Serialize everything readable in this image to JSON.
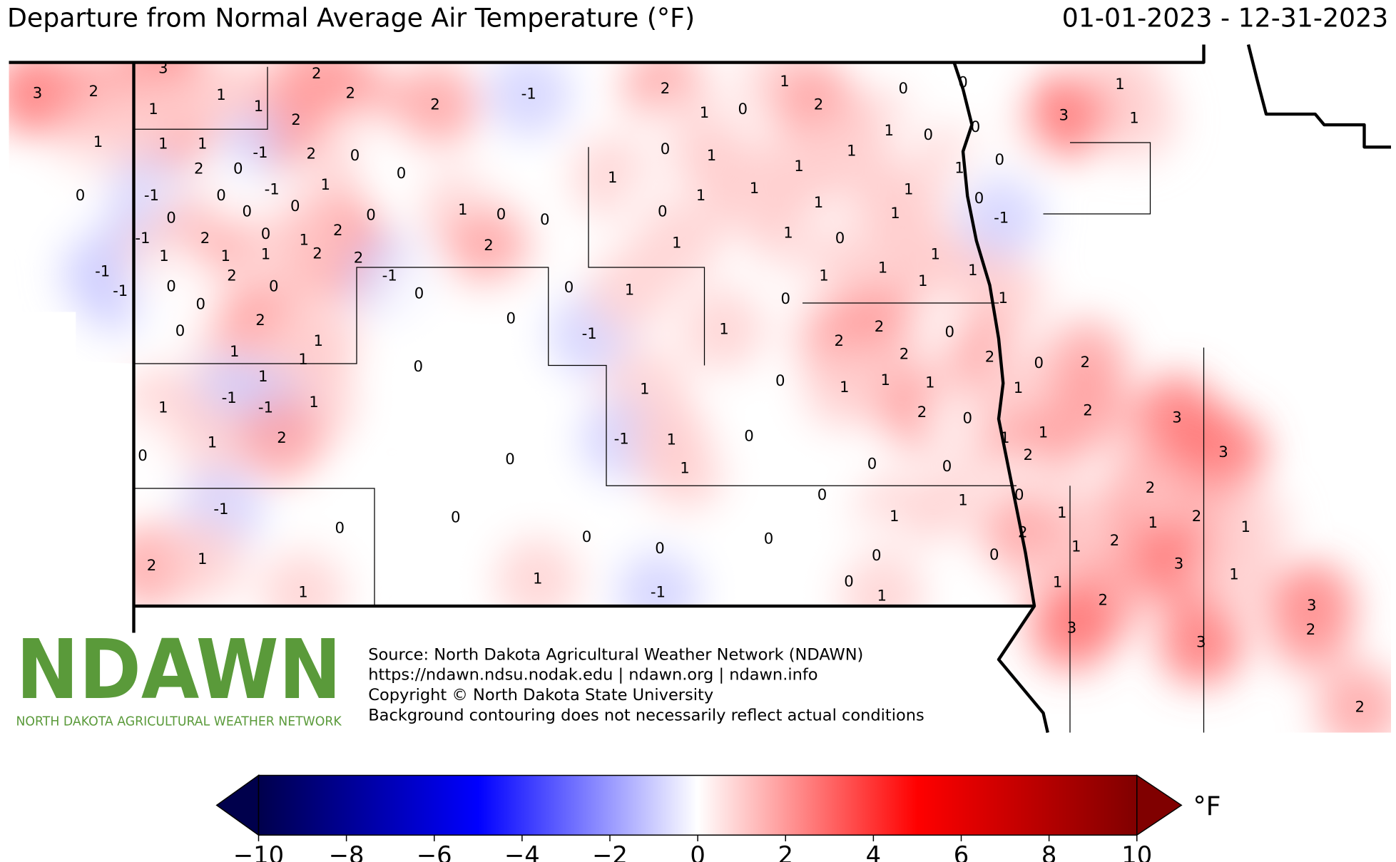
{
  "chart_data": {
    "type": "station-map",
    "title": "Departure from Normal Average Air Temperature (°F)",
    "date_range": "01-01-2023 - 12-31-2023",
    "logo": "NDAWN",
    "logo_subtitle": "NORTH DAKOTA AGRICULTURAL WEATHER NETWORK",
    "source_lines": [
      "Source: North Dakota Agricultural Weather Network (NDAWN)",
      "https://ndawn.ndsu.nodak.edu | ndawn.org | ndawn.info",
      "Copyright © North Dakota State University",
      "Background contouring does not necessarily reflect actual conditions"
    ],
    "colorbar_label": "°F",
    "colormap": [
      "#00004c",
      "#0000ff",
      "#ffffff",
      "#ff0000",
      "#800000"
    ],
    "clim": [
      -10,
      10
    ],
    "cticks": [
      {
        "value": -10,
        "label": "−10"
      },
      {
        "value": -8,
        "label": "−8"
      },
      {
        "value": -6,
        "label": "−6"
      },
      {
        "value": -4,
        "label": "−4"
      },
      {
        "value": -2,
        "label": "−2"
      },
      0,
      2,
      4,
      6,
      8,
      10
    ],
    "station_values": [
      3,
      2,
      1,
      0,
      -1,
      -1,
      3,
      1,
      1,
      1,
      2,
      2,
      2,
      1,
      1,
      2,
      0,
      -1,
      -1,
      0,
      -1,
      0,
      -1,
      2,
      0,
      0,
      1,
      1,
      1,
      2,
      0,
      0,
      0,
      0,
      1,
      2,
      1,
      1,
      1,
      1,
      -1,
      -1,
      1,
      1,
      2,
      0,
      -1,
      0,
      2,
      1,
      1,
      2,
      0,
      1,
      0,
      0,
      2,
      2,
      2,
      1,
      0,
      2,
      -1,
      0,
      1,
      0,
      0,
      2,
      -1,
      0,
      0,
      0,
      -1,
      1,
      1,
      -1,
      1,
      1,
      0,
      0,
      0,
      0,
      0,
      1,
      0,
      -1,
      0,
      0,
      0,
      0,
      1,
      0,
      0,
      1,
      1,
      0,
      2,
      1,
      0,
      1,
      2,
      0,
      1,
      1,
      1,
      0,
      1,
      1,
      1,
      1,
      1,
      1,
      0,
      1,
      1,
      1,
      1,
      1,
      1,
      1,
      0,
      1,
      2,
      2,
      2,
      1,
      1,
      1,
      0,
      2,
      0,
      0,
      1,
      0,
      0,
      0,
      1,
      0,
      0,
      -1,
      1,
      2,
      0,
      2,
      1,
      1,
      1,
      2,
      2,
      3,
      3,
      2,
      2,
      1,
      2,
      1,
      1,
      0,
      2,
      1,
      2,
      3,
      3,
      1,
      1,
      3,
      3,
      2,
      2,
      1,
      1,
      3
    ]
  }
}
